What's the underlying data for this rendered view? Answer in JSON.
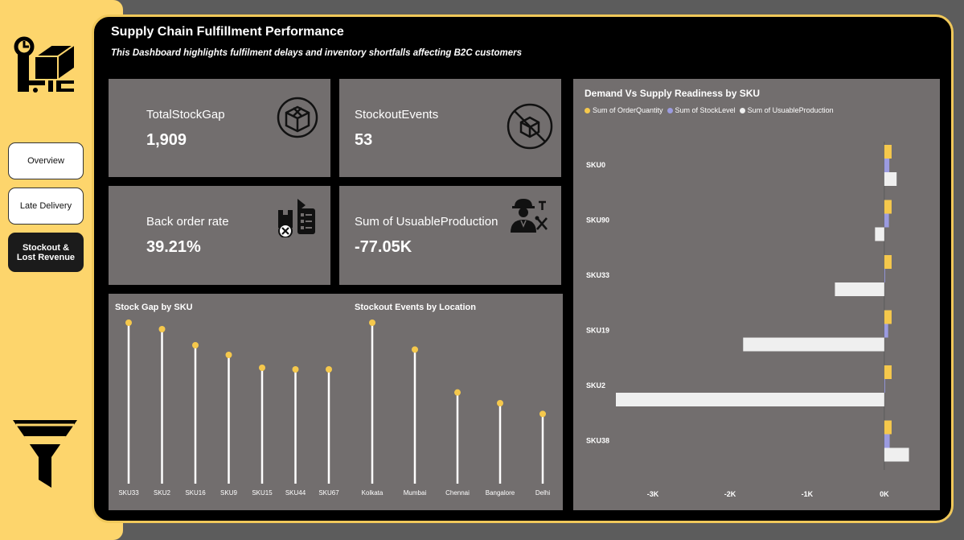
{
  "sidebar": {
    "nav": [
      {
        "label": "Overview",
        "active": false
      },
      {
        "label": "Late Delivery",
        "active": false
      },
      {
        "label": "Stockout & Lost Revenue",
        "active": true
      }
    ],
    "logo_icon": "warehouse-logo-icon",
    "filter_icon": "funnel-icon"
  },
  "header": {
    "title": "Supply Chain Fulfillment Performance",
    "subtitle": "This Dashboard highlights fulfilment delays and inventory shortfalls affecting B2C customers"
  },
  "kpis": [
    {
      "label": "TotalStockGap",
      "value": "1,909",
      "icon": "open-box-icon"
    },
    {
      "label": "StockoutEvents",
      "value": "53",
      "icon": "no-box-icon"
    },
    {
      "label": "Back order rate",
      "value": "39.21%",
      "icon": "backorder-icon"
    },
    {
      "label": "Sum of UsuableProduction",
      "value": "-77.05K",
      "icon": "worker-icon"
    }
  ],
  "colors": {
    "accent": "#f5c84c",
    "stock": "#9b9be0",
    "production": "#efefef",
    "card": "#726e6e",
    "panel_border": "#f0c85a",
    "sidebar": "#fdd56c"
  },
  "chart_data": [
    {
      "type": "lollipop",
      "title": "Stock Gap by SKU",
      "categories": [
        "SKU33",
        "SKU2",
        "SKU16",
        "SKU9",
        "SKU15",
        "SKU44",
        "SKU67"
      ],
      "values": [
        200,
        192,
        172,
        160,
        144,
        142,
        142
      ],
      "ylim": [
        0,
        200
      ]
    },
    {
      "type": "lollipop",
      "title": "Stockout Events by Location",
      "categories": [
        "Kolkata",
        "Mumbai",
        "Chennai",
        "Bangalore",
        "Delhi"
      ],
      "values": [
        15,
        12.5,
        8.5,
        7.5,
        6.5
      ],
      "ylim": [
        0,
        15
      ]
    },
    {
      "type": "bar",
      "orientation": "horizontal",
      "title": "Demand Vs Supply Readiness by SKU",
      "categories": [
        "SKU0",
        "SKU90",
        "SKU33",
        "SKU19",
        "SKU2",
        "SKU38"
      ],
      "series": [
        {
          "name": "Sum of OrderQuantity",
          "color": "#f5c84c",
          "values": [
            95,
            95,
            95,
            95,
            95,
            95
          ]
        },
        {
          "name": "Sum of StockLevel",
          "color": "#9b9be0",
          "values": [
            65,
            60,
            5,
            50,
            5,
            70
          ]
        },
        {
          "name": "Sum of UsuableProduction",
          "color": "#efefef",
          "values": [
            160,
            -120,
            -640,
            -1830,
            -3480,
            320
          ]
        }
      ],
      "xticks": [
        "-3K",
        "-2K",
        "-1K",
        "0K"
      ],
      "xtick_values": [
        -3000,
        -2000,
        -1000,
        0
      ],
      "xlim": [
        -3480,
        700
      ],
      "legend": "top-left"
    }
  ]
}
